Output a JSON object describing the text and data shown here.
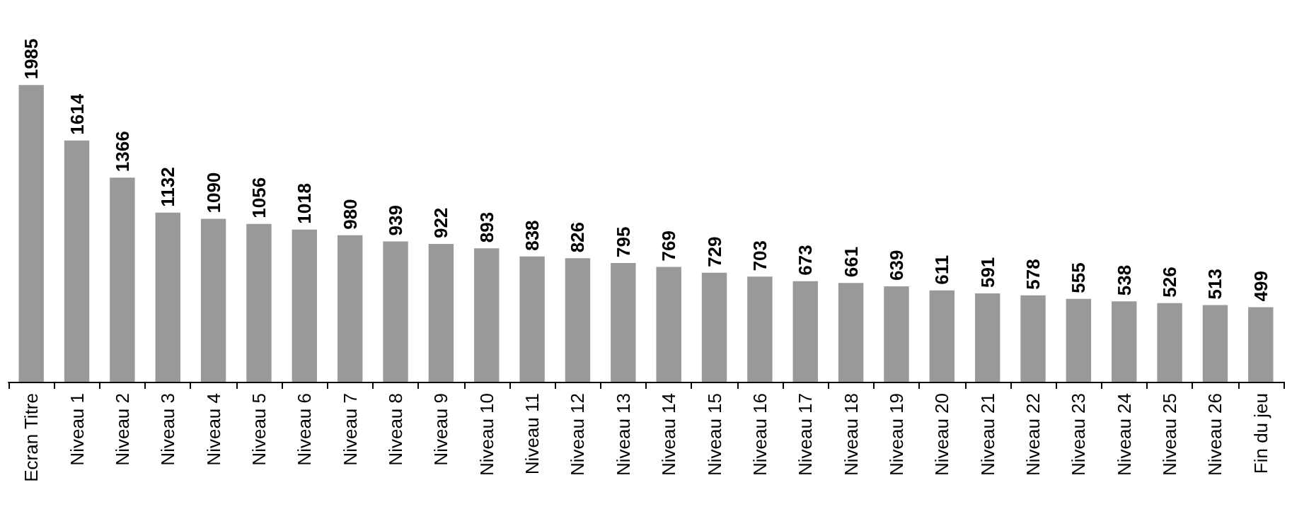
{
  "chart_data": {
    "type": "bar",
    "categories": [
      "Ecran Titre",
      "Niveau 1",
      "Niveau 2",
      "Niveau 3",
      "Niveau 4",
      "Niveau 5",
      "Niveau 6",
      "Niveau 7",
      "Niveau 8",
      "Niveau 9",
      "Niveau 10",
      "Niveau 11",
      "Niveau 12",
      "Niveau 13",
      "Niveau 14",
      "Niveau 15",
      "Niveau 16",
      "Niveau 17",
      "Niveau 18",
      "Niveau 19",
      "Niveau 20",
      "Niveau 21",
      "Niveau 22",
      "Niveau 23",
      "Niveau 24",
      "Niveau 25",
      "Niveau 26",
      "Fin du jeu"
    ],
    "values": [
      1985,
      1614,
      1366,
      1132,
      1090,
      1056,
      1018,
      980,
      939,
      922,
      893,
      838,
      826,
      795,
      769,
      729,
      703,
      673,
      661,
      639,
      611,
      591,
      578,
      555,
      538,
      526,
      513,
      499
    ],
    "color": "#999999",
    "data_labels": true
  }
}
